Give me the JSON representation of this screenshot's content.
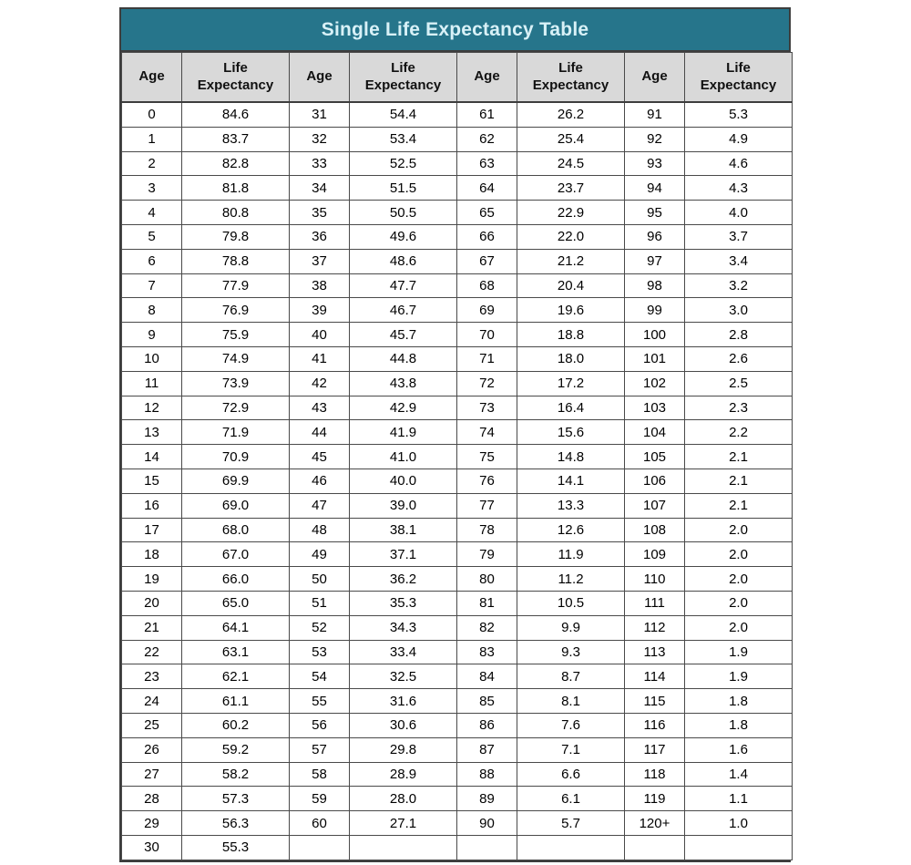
{
  "title": "Single Life Expectancy Table",
  "header": {
    "age_label": "Age",
    "life_expectancy_label": "Life Expectancy"
  },
  "colors": {
    "title_bg": "#26758B",
    "title_text": "#D8F1F7",
    "header_bg": "#D9D9D9",
    "border": "#4A4A4A",
    "cell_text": "#000000"
  },
  "chart_data": {
    "type": "table",
    "title": "Single Life Expectancy Table",
    "column_headers": [
      "Age",
      "Life Expectancy",
      "Age",
      "Life Expectancy",
      "Age",
      "Life Expectancy",
      "Age",
      "Life Expectancy"
    ],
    "column_groups": [
      {
        "rows": [
          [
            "0",
            "84.6"
          ],
          [
            "1",
            "83.7"
          ],
          [
            "2",
            "82.8"
          ],
          [
            "3",
            "81.8"
          ],
          [
            "4",
            "80.8"
          ],
          [
            "5",
            "79.8"
          ],
          [
            "6",
            "78.8"
          ],
          [
            "7",
            "77.9"
          ],
          [
            "8",
            "76.9"
          ],
          [
            "9",
            "75.9"
          ],
          [
            "10",
            "74.9"
          ],
          [
            "11",
            "73.9"
          ],
          [
            "12",
            "72.9"
          ],
          [
            "13",
            "71.9"
          ],
          [
            "14",
            "70.9"
          ],
          [
            "15",
            "69.9"
          ],
          [
            "16",
            "69.0"
          ],
          [
            "17",
            "68.0"
          ],
          [
            "18",
            "67.0"
          ],
          [
            "19",
            "66.0"
          ],
          [
            "20",
            "65.0"
          ],
          [
            "21",
            "64.1"
          ],
          [
            "22",
            "63.1"
          ],
          [
            "23",
            "62.1"
          ],
          [
            "24",
            "61.1"
          ],
          [
            "25",
            "60.2"
          ],
          [
            "26",
            "59.2"
          ],
          [
            "27",
            "58.2"
          ],
          [
            "28",
            "57.3"
          ],
          [
            "29",
            "56.3"
          ],
          [
            "30",
            "55.3"
          ]
        ]
      },
      {
        "rows": [
          [
            "31",
            "54.4"
          ],
          [
            "32",
            "53.4"
          ],
          [
            "33",
            "52.5"
          ],
          [
            "34",
            "51.5"
          ],
          [
            "35",
            "50.5"
          ],
          [
            "36",
            "49.6"
          ],
          [
            "37",
            "48.6"
          ],
          [
            "38",
            "47.7"
          ],
          [
            "39",
            "46.7"
          ],
          [
            "40",
            "45.7"
          ],
          [
            "41",
            "44.8"
          ],
          [
            "42",
            "43.8"
          ],
          [
            "43",
            "42.9"
          ],
          [
            "44",
            "41.9"
          ],
          [
            "45",
            "41.0"
          ],
          [
            "46",
            "40.0"
          ],
          [
            "47",
            "39.0"
          ],
          [
            "48",
            "38.1"
          ],
          [
            "49",
            "37.1"
          ],
          [
            "50",
            "36.2"
          ],
          [
            "51",
            "35.3"
          ],
          [
            "52",
            "34.3"
          ],
          [
            "53",
            "33.4"
          ],
          [
            "54",
            "32.5"
          ],
          [
            "55",
            "31.6"
          ],
          [
            "56",
            "30.6"
          ],
          [
            "57",
            "29.8"
          ],
          [
            "58",
            "28.9"
          ],
          [
            "59",
            "28.0"
          ],
          [
            "60",
            "27.1"
          ]
        ]
      },
      {
        "rows": [
          [
            "61",
            "26.2"
          ],
          [
            "62",
            "25.4"
          ],
          [
            "63",
            "24.5"
          ],
          [
            "64",
            "23.7"
          ],
          [
            "65",
            "22.9"
          ],
          [
            "66",
            "22.0"
          ],
          [
            "67",
            "21.2"
          ],
          [
            "68",
            "20.4"
          ],
          [
            "69",
            "19.6"
          ],
          [
            "70",
            "18.8"
          ],
          [
            "71",
            "18.0"
          ],
          [
            "72",
            "17.2"
          ],
          [
            "73",
            "16.4"
          ],
          [
            "74",
            "15.6"
          ],
          [
            "75",
            "14.8"
          ],
          [
            "76",
            "14.1"
          ],
          [
            "77",
            "13.3"
          ],
          [
            "78",
            "12.6"
          ],
          [
            "79",
            "11.9"
          ],
          [
            "80",
            "11.2"
          ],
          [
            "81",
            "10.5"
          ],
          [
            "82",
            "9.9"
          ],
          [
            "83",
            "9.3"
          ],
          [
            "84",
            "8.7"
          ],
          [
            "85",
            "8.1"
          ],
          [
            "86",
            "7.6"
          ],
          [
            "87",
            "7.1"
          ],
          [
            "88",
            "6.6"
          ],
          [
            "89",
            "6.1"
          ],
          [
            "90",
            "5.7"
          ]
        ]
      },
      {
        "rows": [
          [
            "91",
            "5.3"
          ],
          [
            "92",
            "4.9"
          ],
          [
            "93",
            "4.6"
          ],
          [
            "94",
            "4.3"
          ],
          [
            "95",
            "4.0"
          ],
          [
            "96",
            "3.7"
          ],
          [
            "97",
            "3.4"
          ],
          [
            "98",
            "3.2"
          ],
          [
            "99",
            "3.0"
          ],
          [
            "100",
            "2.8"
          ],
          [
            "101",
            "2.6"
          ],
          [
            "102",
            "2.5"
          ],
          [
            "103",
            "2.3"
          ],
          [
            "104",
            "2.2"
          ],
          [
            "105",
            "2.1"
          ],
          [
            "106",
            "2.1"
          ],
          [
            "107",
            "2.1"
          ],
          [
            "108",
            "2.0"
          ],
          [
            "109",
            "2.0"
          ],
          [
            "110",
            "2.0"
          ],
          [
            "111",
            "2.0"
          ],
          [
            "112",
            "2.0"
          ],
          [
            "113",
            "1.9"
          ],
          [
            "114",
            "1.9"
          ],
          [
            "115",
            "1.8"
          ],
          [
            "116",
            "1.8"
          ],
          [
            "117",
            "1.6"
          ],
          [
            "118",
            "1.4"
          ],
          [
            "119",
            "1.1"
          ],
          [
            "120+",
            "1.0"
          ]
        ]
      }
    ]
  }
}
